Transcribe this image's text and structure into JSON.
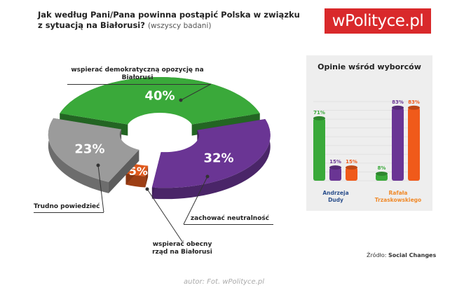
{
  "header": {
    "title": "Jak według Pani/Pana powinna postąpić Polska w związku z sytuacją na Białorusi?",
    "subtitle": "(wszyscy badani)",
    "logo": "wPolityce.pl"
  },
  "footer": {
    "source_label": "Źródło:",
    "source": "Social Changes",
    "author": "autor: Fot. wPolityce.pl"
  },
  "chart_data": [
    {
      "type": "pie",
      "title": "Jak według Pani/Pana powinna postąpić Polska w związku z sytuacją na Białorusi? (wszyscy badani)",
      "slices": [
        {
          "label": "wspierać demokratyczną opozycję na Białorusi",
          "value": 40,
          "text": "40%",
          "color": "#3aa93a"
        },
        {
          "label": "zachować neutralność",
          "value": 32,
          "text": "32%",
          "color": "#6a3594"
        },
        {
          "label": "wspierać obecny rząd na Białorusi",
          "value": 5,
          "text": "5%",
          "color": "#e0591c"
        },
        {
          "label": "Trudno powiedzieć",
          "value": 23,
          "text": "23%",
          "color": "#9b9b9b"
        }
      ]
    },
    {
      "type": "bar",
      "title": "Opinie wśród wyborców",
      "categories": [
        "Andrzeja Dudy",
        "Rafała Trzaskowskiego"
      ],
      "category_colors": [
        "#2b4f8c",
        "#f08a2a"
      ],
      "series": [
        {
          "name": "wspierać demokratyczną opozycję",
          "color": "#3aa93a",
          "values": [
            71,
            8
          ],
          "labels": [
            "71%",
            "8%"
          ]
        },
        {
          "name": "zachować neutralność",
          "color": "#6a3594",
          "values": [
            15,
            83
          ],
          "labels": [
            "15%",
            "83%"
          ]
        },
        {
          "name": "wspierać obecny rząd",
          "color": "#f05a1a",
          "values": [
            15,
            83
          ],
          "labels": [
            "15%",
            "83%"
          ]
        }
      ],
      "ylim": [
        0,
        90
      ]
    }
  ]
}
